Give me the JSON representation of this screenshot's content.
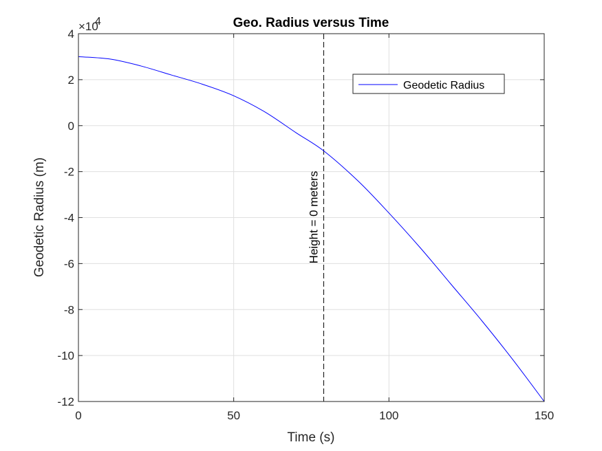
{
  "chart_data": {
    "type": "line",
    "title": "Geo. Radius versus Time",
    "xlabel": "Time (s)",
    "ylabel": "Geodetic Radius (m)",
    "xlim": [
      0,
      150
    ],
    "ylim": [
      -12,
      4
    ],
    "y_multiplier_label": {
      "base": "×10",
      "exponent": "4"
    },
    "xticks": [
      0,
      50,
      100,
      150
    ],
    "yticks": [
      -12,
      -10,
      -8,
      -6,
      -4,
      -2,
      0,
      2,
      4
    ],
    "grid": true,
    "legend": {
      "position": "top-right",
      "entries": [
        "Geodetic Radius"
      ]
    },
    "series": [
      {
        "name": "Geodetic Radius",
        "color": "#0000ff",
        "x": [
          0,
          10,
          20,
          30,
          40,
          50,
          60,
          70,
          79,
          90,
          100,
          110,
          120,
          130,
          140,
          150
        ],
        "y": [
          3.0,
          2.9,
          2.6,
          2.2,
          1.8,
          1.3,
          0.6,
          -0.3,
          -1.1,
          -2.4,
          -3.8,
          -5.3,
          -6.9,
          -8.5,
          -10.2,
          -12.0
        ]
      }
    ],
    "annotations": [
      {
        "type": "vline",
        "x": 79,
        "style": "dashed",
        "label": "Height = 0 meters"
      }
    ]
  }
}
